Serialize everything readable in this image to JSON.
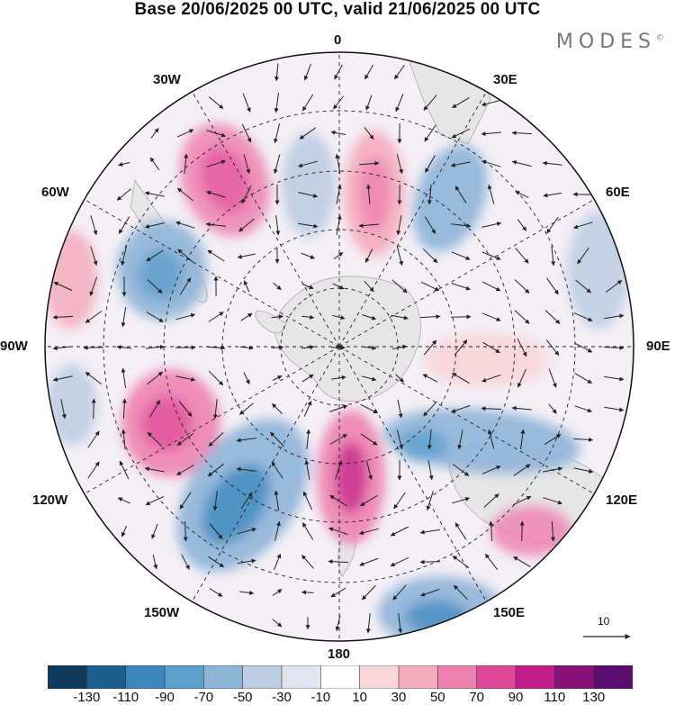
{
  "title": "Base 20/06/2025 00 UTC, valid 21/06/2025 00 UTC",
  "brand": "MODES",
  "brand_mark": "©",
  "labels": {
    "lon_0": "0",
    "lon_30E": "30E",
    "lon_60E": "60E",
    "lon_90E": "90E",
    "lon_120E": "120E",
    "lon_150E": "150E",
    "lon_180": "180",
    "lon_150W": "150W",
    "lon_120W": "120W",
    "lon_90W": "90W",
    "lon_60W": "60W",
    "lon_30W": "30W"
  },
  "vector_scale_label": "10",
  "colorbar": {
    "ticks": [
      "-130",
      "-110",
      "-90",
      "-70",
      "-50",
      "-30",
      "-10",
      "10",
      "30",
      "50",
      "70",
      "90",
      "110",
      "130"
    ],
    "colors": [
      "#0f3a5c",
      "#1c5f8c",
      "#3a86bd",
      "#5b9fcc",
      "#8eb4d8",
      "#bfcde4",
      "#e4e4f0",
      "#ffffff",
      "#f8d6da",
      "#f4aec0",
      "#ee82b0",
      "#e0489a",
      "#c21e88",
      "#8a107a",
      "#5a0c70"
    ]
  },
  "map_anomalies": [
    {
      "name": "pos-north-left",
      "value": 70
    },
    {
      "name": "neg-north-center",
      "value": -50
    },
    {
      "name": "pos-north-center",
      "value": 80
    },
    {
      "name": "neg-north-right",
      "value": -60
    },
    {
      "name": "neg-west",
      "value": -70
    },
    {
      "name": "pos-far-west",
      "value": 40
    },
    {
      "name": "neg-far-west",
      "value": -50
    },
    {
      "name": "neg-east",
      "value": -50
    },
    {
      "name": "pos-southwest",
      "value": 80
    },
    {
      "name": "neg-south-west",
      "value": -90
    },
    {
      "name": "pos-south",
      "value": 90
    },
    {
      "name": "neg-southeast",
      "value": -70
    },
    {
      "name": "pos-southeast",
      "value": 60
    },
    {
      "name": "neg-bottom",
      "value": -80
    },
    {
      "name": "pos-center-east",
      "value": 30
    }
  ]
}
